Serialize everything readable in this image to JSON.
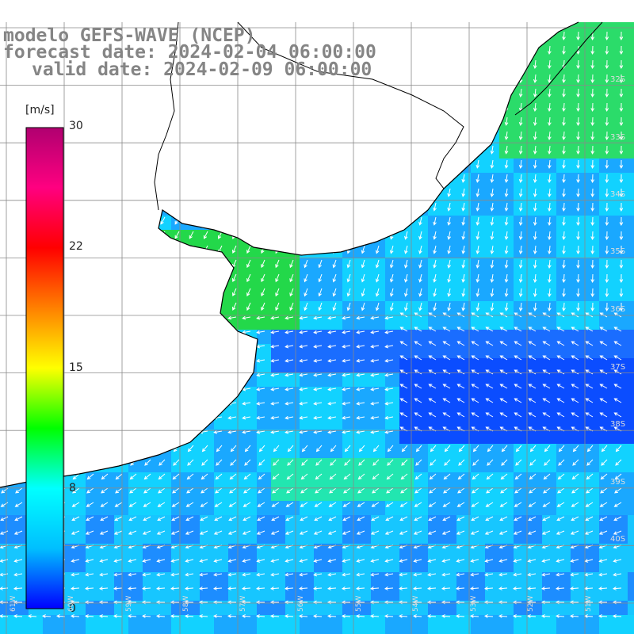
{
  "title": {
    "line1": "modelo GEFS-WAVE (NCEP)",
    "line2": "forecast date: 2024-02-04 06:00:00",
    "line3": "valid date: 2024-02-09 06:00:00"
  },
  "colorbar": {
    "unit": "[m/s]",
    "ticks": [
      "30",
      "22",
      "15",
      "8",
      "0"
    ],
    "values": [
      30,
      22,
      15,
      8,
      0
    ],
    "min": 0,
    "max": 30,
    "colors": [
      "#0000ff",
      "#00bfff",
      "#00ffff",
      "#00ff00",
      "#ffff00",
      "#ff8000",
      "#ff0000",
      "#ff0080",
      "#b00070"
    ]
  },
  "grid": {
    "lat_labels": [
      "32S",
      "33S",
      "34S",
      "35S",
      "36S",
      "37S",
      "38S",
      "39S",
      "40S"
    ],
    "lon_labels": [
      "61W",
      "60W",
      "59W",
      "58W",
      "57W",
      "56W",
      "55W",
      "54W",
      "53W",
      "52W",
      "51W"
    ]
  },
  "colors": {
    "ocean_low": "#1f6fff",
    "ocean_mid": "#15c8ff",
    "ocean_high": "#19e63c",
    "land": "#ffffff",
    "grid": "#8a8a8a",
    "coast": "#000000",
    "arrow": "#ffffff"
  }
}
